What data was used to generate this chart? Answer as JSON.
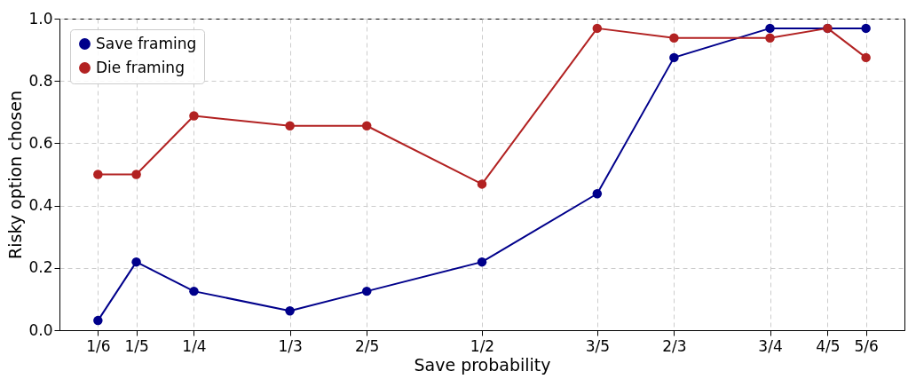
{
  "chart_data": {
    "type": "line",
    "xlabel": "Save probability",
    "ylabel": "Risky option chosen",
    "x": [
      0.1667,
      0.2,
      0.25,
      0.3333,
      0.4,
      0.5,
      0.6,
      0.6667,
      0.75,
      0.8,
      0.8333
    ],
    "series": [
      {
        "name": "Save framing",
        "color": "#00008b",
        "values": [
          0.031,
          0.219,
          0.125,
          0.062,
          0.125,
          0.219,
          0.438,
          0.875,
          0.969,
          0.969,
          0.969
        ]
      },
      {
        "name": "Die framing",
        "color": "#b22222",
        "values": [
          0.5,
          0.5,
          0.688,
          0.656,
          0.656,
          0.469,
          0.969,
          0.938,
          0.938,
          0.969,
          0.875
        ]
      }
    ],
    "xlim": [
      0.1333,
      0.8667
    ],
    "xticks": [
      {
        "value": 0.1667,
        "label": "1/6"
      },
      {
        "value": 0.2,
        "label": "1/5"
      },
      {
        "value": 0.25,
        "label": "1/4"
      },
      {
        "value": 0.3333,
        "label": "1/3"
      },
      {
        "value": 0.4,
        "label": "2/5"
      },
      {
        "value": 0.5,
        "label": "1/2"
      },
      {
        "value": 0.6,
        "label": "3/5"
      },
      {
        "value": 0.6667,
        "label": "2/3"
      },
      {
        "value": 0.75,
        "label": "3/4"
      },
      {
        "value": 0.8,
        "label": "4/5"
      },
      {
        "value": 0.8333,
        "label": "5/6"
      }
    ],
    "ylim": [
      0,
      1
    ],
    "yticks": [
      {
        "value": 0,
        "label": "0.0"
      },
      {
        "value": 0.2,
        "label": "0.2"
      },
      {
        "value": 0.4,
        "label": "0.4"
      },
      {
        "value": 0.6,
        "label": "0.6"
      },
      {
        "value": 0.8,
        "label": "0.8"
      },
      {
        "value": 1,
        "label": "1.0"
      }
    ],
    "grid": true,
    "legend": "top left",
    "marker": "circle",
    "line_style": "solid"
  }
}
